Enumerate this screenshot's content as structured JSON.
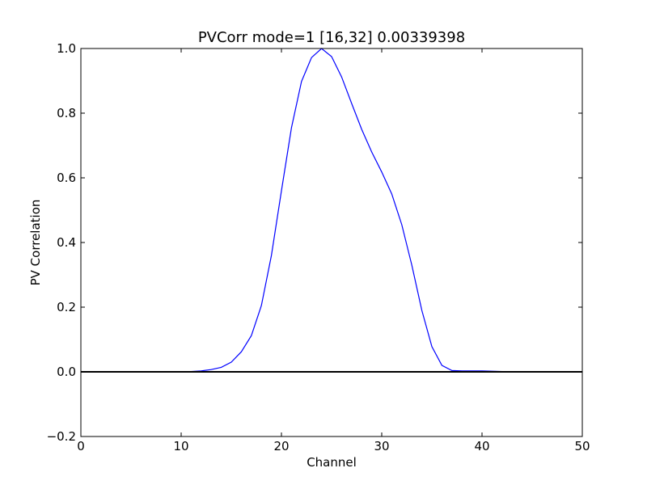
{
  "chart_data": {
    "type": "line",
    "title": "PVCorr mode=1 [16,32] 0.00339398",
    "xlabel": "Channel",
    "ylabel": "PV Correlation",
    "xlim": [
      0,
      50
    ],
    "ylim": [
      -0.2,
      1.0
    ],
    "x_ticks": [
      "0",
      "10",
      "20",
      "30",
      "40",
      "50"
    ],
    "y_ticks": [
      "−0.2",
      "0.0",
      "0.2",
      "0.4",
      "0.6",
      "0.8",
      "1.0"
    ],
    "grid": false,
    "series": [
      {
        "color": "#0000ff",
        "x": [
          0,
          1,
          2,
          3,
          4,
          5,
          6,
          7,
          8,
          9,
          10,
          11,
          12,
          13,
          14,
          15,
          16,
          17,
          18,
          19,
          20,
          21,
          22,
          23,
          24,
          25,
          26,
          27,
          28,
          29,
          30,
          31,
          32,
          33,
          34,
          35,
          36,
          37,
          38,
          39,
          40,
          41,
          42,
          43,
          44,
          45,
          46,
          47,
          48,
          49,
          50
        ],
        "y": [
          0,
          0,
          0,
          0,
          0,
          0,
          0,
          0,
          0,
          0,
          0,
          0.001,
          0.003,
          0.007,
          0.014,
          0.03,
          0.062,
          0.112,
          0.205,
          0.36,
          0.56,
          0.755,
          0.898,
          0.972,
          1.0,
          0.975,
          0.912,
          0.83,
          0.75,
          0.68,
          0.618,
          0.55,
          0.455,
          0.33,
          0.19,
          0.078,
          0.02,
          0.004,
          0.003,
          0.003,
          0.003,
          0.002,
          0.001,
          0,
          0,
          0,
          0,
          0,
          0,
          0,
          0
        ]
      }
    ],
    "reference_line": {
      "y": 0.0,
      "color": "#000000"
    }
  }
}
